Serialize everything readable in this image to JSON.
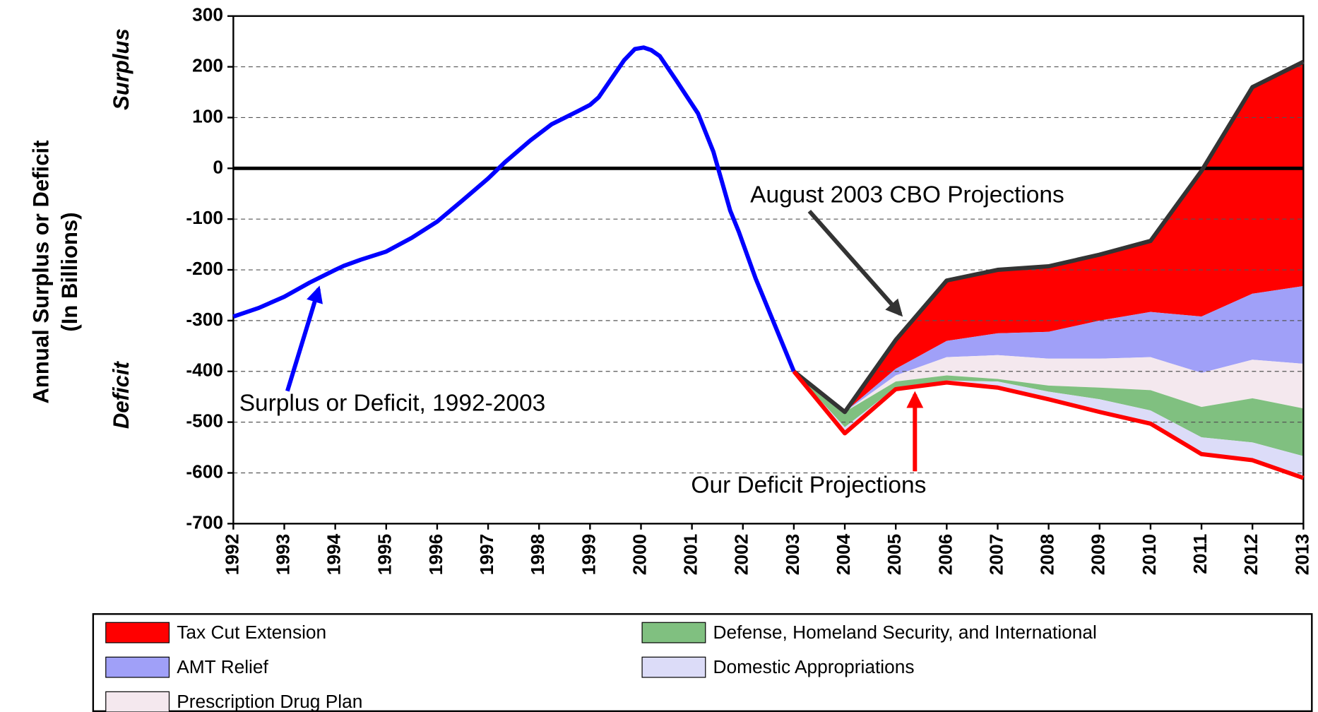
{
  "chart_data": {
    "type": "line",
    "ylabel": [
      "Annual Surplus or Deficit",
      "(In Billions)"
    ],
    "side_labels": {
      "top": "Surplus",
      "bottom": "Deficit"
    },
    "xlim": [
      1992,
      2013
    ],
    "xticks": [
      1992,
      1993,
      1994,
      1995,
      1996,
      1997,
      1998,
      1999,
      2000,
      2001,
      2002,
      2003,
      2004,
      2005,
      2006,
      2007,
      2008,
      2009,
      2010,
      2011,
      2012,
      2013
    ],
    "ylim": [
      -700,
      300
    ],
    "yticks": [
      -700,
      -600,
      -500,
      -400,
      -300,
      -200,
      -100,
      0,
      100,
      200,
      300
    ],
    "grid": true,
    "actual": {
      "color": "#0000ff",
      "x": [
        1992,
        1992.5,
        1993,
        1993.5,
        1994,
        1994.17,
        1994.5,
        1995,
        1995.5,
        1996,
        1996.5,
        1997,
        1997.33,
        1997.83,
        1998.25,
        1998.75,
        1999,
        1999.17,
        1999.67,
        1999.88,
        2000.05,
        2000.2,
        2000.37,
        2000.7,
        2001.12,
        2001.42,
        2001.75,
        2001.92,
        2002.25,
        2003
      ],
      "values": [
        -292,
        -275,
        -253,
        -225,
        -200,
        -192,
        -180,
        -164,
        -137,
        -105,
        -63,
        -20,
        12,
        55,
        87,
        112,
        125,
        140,
        213,
        235,
        238,
        233,
        221,
        172,
        108,
        33,
        -83,
        -125,
        -217,
        -400
      ]
    },
    "projection": {
      "x": [
        2003,
        2004,
        2005,
        2006,
        2007,
        2008,
        2009,
        2010,
        2011,
        2012,
        2013
      ],
      "baseline": {
        "color": "#333333",
        "values": [
          -400,
          -480,
          -338,
          -221,
          -200,
          -193,
          -170,
          -143,
          -5,
          160,
          210
        ]
      },
      "total_line_color": "#ff0000",
      "series": [
        {
          "name": "Tax Cut Extension",
          "color": "#ff0000",
          "values": [
            0,
            0,
            -57,
            -119,
            -125,
            -129,
            -130,
            -140,
            -287,
            -407,
            -442
          ]
        },
        {
          "name": "AMT Relief",
          "color": "#a0a0f8",
          "values": [
            0,
            0,
            -13,
            -32,
            -43,
            -53,
            -75,
            -89,
            -111,
            -130,
            -153
          ]
        },
        {
          "name": "Prescription Drug Plan",
          "color": "#f4e8ee",
          "values": [
            0,
            0,
            -12,
            -36,
            -47,
            -53,
            -57,
            -65,
            -67,
            -76,
            -88
          ]
        },
        {
          "name": "Defense, Homeland Security, and International",
          "color": "#80c080",
          "values": [
            0,
            -30,
            -12,
            -10,
            -5,
            -12,
            -23,
            -40,
            -60,
            -87,
            -94
          ]
        },
        {
          "name": "Domestic Appropriations",
          "color": "#dcdcf8",
          "values": [
            0,
            -12,
            -3,
            -4,
            -12,
            -15,
            -25,
            -26,
            -33,
            -35,
            -43
          ]
        }
      ]
    },
    "annotations": [
      {
        "text": "August 2003 CBO Projections",
        "color": "#333333"
      },
      {
        "text": "Surplus or Deficit, 1992-2003",
        "color": "#0000ff"
      },
      {
        "text": "Our Deficit Projections",
        "color": "#ff0000"
      }
    ]
  }
}
